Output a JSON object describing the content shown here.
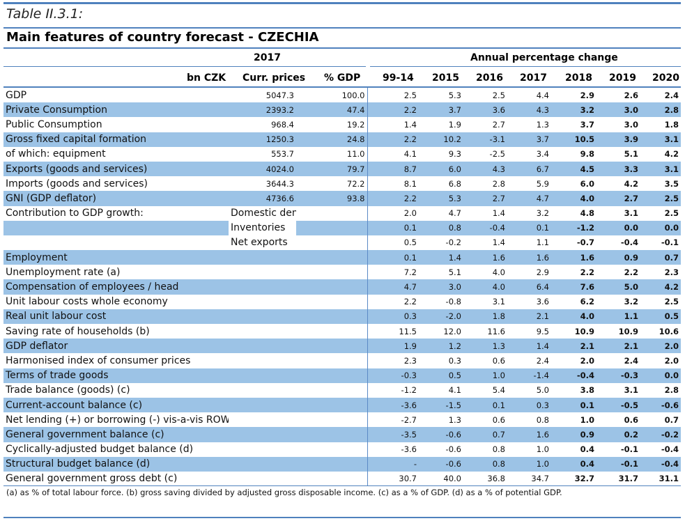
{
  "caption": "Table II.3.1:",
  "title": "Main features of country forecast - CZECHIA",
  "header": {
    "year_2017": "2017",
    "annual_change": "Annual percentage change",
    "col_bncz": "bn CZK",
    "col_curr": "Curr. prices",
    "col_pgdp": "% GDP",
    "years": [
      "99-14",
      "2015",
      "2016",
      "2017",
      "2018",
      "2019",
      "2020"
    ]
  },
  "rows": [
    {
      "label": "GDP",
      "sub": "",
      "shade": false,
      "bn": "5047.3",
      "pgdp": "100.0",
      "vals": [
        "2.5",
        "5.3",
        "2.5",
        "4.4",
        "2.9",
        "2.6",
        "2.4"
      ]
    },
    {
      "label": "Private Consumption",
      "sub": "",
      "shade": true,
      "bn": "2393.2",
      "pgdp": "47.4",
      "vals": [
        "2.2",
        "3.7",
        "3.6",
        "4.3",
        "3.2",
        "3.0",
        "2.8"
      ]
    },
    {
      "label": "Public Consumption",
      "sub": "",
      "shade": false,
      "bn": "968.4",
      "pgdp": "19.2",
      "vals": [
        "1.4",
        "1.9",
        "2.7",
        "1.3",
        "3.7",
        "3.0",
        "1.8"
      ]
    },
    {
      "label": "Gross fixed capital formation",
      "sub": "",
      "shade": true,
      "bn": "1250.3",
      "pgdp": "24.8",
      "vals": [
        "2.2",
        "10.2",
        "-3.1",
        "3.7",
        "10.5",
        "3.9",
        "3.1"
      ]
    },
    {
      "label": "of which: equipment",
      "sub": "",
      "shade": false,
      "bn": "553.7",
      "pgdp": "11.0",
      "vals": [
        "4.1",
        "9.3",
        "-2.5",
        "3.4",
        "9.8",
        "5.1",
        "4.2"
      ]
    },
    {
      "label": "Exports (goods and services)",
      "sub": "",
      "shade": true,
      "bn": "4024.0",
      "pgdp": "79.7",
      "vals": [
        "8.7",
        "6.0",
        "4.3",
        "6.7",
        "4.5",
        "3.3",
        "3.1"
      ]
    },
    {
      "label": "Imports (goods and services)",
      "sub": "",
      "shade": false,
      "bn": "3644.3",
      "pgdp": "72.2",
      "vals": [
        "8.1",
        "6.8",
        "2.8",
        "5.9",
        "6.0",
        "4.2",
        "3.5"
      ]
    },
    {
      "label": "GNI (GDP deflator)",
      "sub": "",
      "shade": true,
      "bn": "4736.6",
      "pgdp": "93.8",
      "vals": [
        "2.2",
        "5.3",
        "2.7",
        "4.7",
        "4.0",
        "2.7",
        "2.5"
      ]
    },
    {
      "label": "Contribution to GDP growth:",
      "sub": "Domestic demand",
      "shade": false,
      "bn": "",
      "pgdp": "",
      "vals": [
        "2.0",
        "4.7",
        "1.4",
        "3.2",
        "4.8",
        "3.1",
        "2.5"
      ]
    },
    {
      "label": "",
      "sub": "Inventories",
      "shade": true,
      "bn": "",
      "pgdp": "",
      "vals": [
        "0.1",
        "0.8",
        "-0.4",
        "0.1",
        "-1.2",
        "0.0",
        "0.0"
      ]
    },
    {
      "label": "",
      "sub": "Net exports",
      "shade": false,
      "bn": "",
      "pgdp": "",
      "vals": [
        "0.5",
        "-0.2",
        "1.4",
        "1.1",
        "-0.7",
        "-0.4",
        "-0.1"
      ]
    },
    {
      "label": "Employment",
      "sub": "",
      "shade": true,
      "bn": "",
      "pgdp": "",
      "vals": [
        "0.1",
        "1.4",
        "1.6",
        "1.6",
        "1.6",
        "0.9",
        "0.7"
      ]
    },
    {
      "label": "Unemployment rate (a)",
      "sub": "",
      "shade": false,
      "bn": "",
      "pgdp": "",
      "vals": [
        "7.2",
        "5.1",
        "4.0",
        "2.9",
        "2.2",
        "2.2",
        "2.3"
      ]
    },
    {
      "label": "Compensation of employees / head",
      "sub": "",
      "shade": true,
      "bn": "",
      "pgdp": "",
      "vals": [
        "4.7",
        "3.0",
        "4.0",
        "6.4",
        "7.6",
        "5.0",
        "4.2"
      ]
    },
    {
      "label": "Unit labour costs whole economy",
      "sub": "",
      "shade": false,
      "bn": "",
      "pgdp": "",
      "vals": [
        "2.2",
        "-0.8",
        "3.1",
        "3.6",
        "6.2",
        "3.2",
        "2.5"
      ]
    },
    {
      "label": "Real unit labour cost",
      "sub": "",
      "shade": true,
      "bn": "",
      "pgdp": "",
      "vals": [
        "0.3",
        "-2.0",
        "1.8",
        "2.1",
        "4.0",
        "1.1",
        "0.5"
      ]
    },
    {
      "label": "Saving rate of households (b)",
      "sub": "",
      "shade": false,
      "bn": "",
      "pgdp": "",
      "vals": [
        "11.5",
        "12.0",
        "11.6",
        "9.5",
        "10.9",
        "10.9",
        "10.6"
      ]
    },
    {
      "label": "GDP deflator",
      "sub": "",
      "shade": true,
      "bn": "",
      "pgdp": "",
      "vals": [
        "1.9",
        "1.2",
        "1.3",
        "1.4",
        "2.1",
        "2.1",
        "2.0"
      ]
    },
    {
      "label": "Harmonised index of consumer prices",
      "sub": "",
      "shade": false,
      "bn": "",
      "pgdp": "",
      "vals": [
        "2.3",
        "0.3",
        "0.6",
        "2.4",
        "2.0",
        "2.4",
        "2.0"
      ]
    },
    {
      "label": "Terms of trade goods",
      "sub": "",
      "shade": true,
      "bn": "",
      "pgdp": "",
      "vals": [
        "-0.3",
        "0.5",
        "1.0",
        "-1.4",
        "-0.4",
        "-0.3",
        "0.0"
      ]
    },
    {
      "label": "Trade balance (goods) (c)",
      "sub": "",
      "shade": false,
      "bn": "",
      "pgdp": "",
      "vals": [
        "-1.2",
        "4.1",
        "5.4",
        "5.0",
        "3.8",
        "3.1",
        "2.8"
      ]
    },
    {
      "label": "Current-account balance (c)",
      "sub": "",
      "shade": true,
      "bn": "",
      "pgdp": "",
      "vals": [
        "-3.6",
        "-1.5",
        "0.1",
        "0.3",
        "0.1",
        "-0.5",
        "-0.6"
      ]
    },
    {
      "label": "Net lending (+) or borrowing (-) vis-a-vis ROW (c)",
      "sub": "",
      "shade": false,
      "bn": "",
      "pgdp": "",
      "vals": [
        "-2.7",
        "1.3",
        "0.6",
        "0.8",
        "1.0",
        "0.6",
        "0.7"
      ]
    },
    {
      "label": "General government balance (c)",
      "sub": "",
      "shade": true,
      "bn": "",
      "pgdp": "",
      "vals": [
        "-3.5",
        "-0.6",
        "0.7",
        "1.6",
        "0.9",
        "0.2",
        "-0.2"
      ]
    },
    {
      "label": "Cyclically-adjusted budget balance (d)",
      "sub": "",
      "shade": false,
      "bn": "",
      "pgdp": "",
      "vals": [
        "-3.6",
        "-0.6",
        "0.8",
        "1.0",
        "0.4",
        "-0.1",
        "-0.4"
      ]
    },
    {
      "label": "Structural budget balance (d)",
      "sub": "",
      "shade": true,
      "bn": "",
      "pgdp": "",
      "vals": [
        "-",
        "-0.6",
        "0.8",
        "1.0",
        "0.4",
        "-0.1",
        "-0.4"
      ]
    },
    {
      "label": "General government gross debt (c)",
      "sub": "",
      "shade": false,
      "bn": "",
      "pgdp": "",
      "vals": [
        "30.7",
        "40.0",
        "36.8",
        "34.7",
        "32.7",
        "31.7",
        "31.1"
      ]
    }
  ],
  "footnote": "(a) as % of total labour force. (b) gross saving divided by adjusted gross disposable income. (c) as a % of  GDP. (d) as a % of  potential GDP.",
  "colors": {
    "accent": "#4f81bd",
    "shade": "#9cc3e6"
  }
}
